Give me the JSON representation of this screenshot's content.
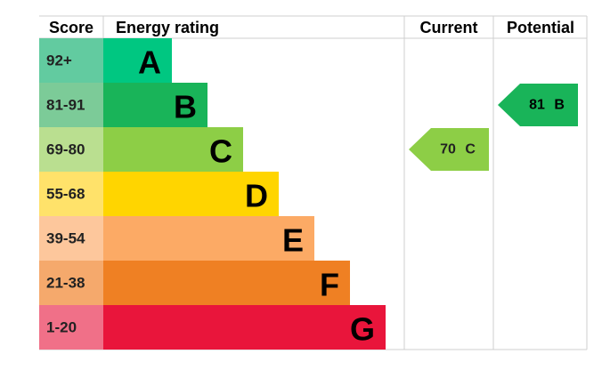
{
  "header": {
    "score": "Score",
    "rating": "Energy rating",
    "current": "Current",
    "potential": "Potential"
  },
  "bands": [
    {
      "score": "92+",
      "letter": "A",
      "color": "#00c781",
      "score_color": "#62cba0"
    },
    {
      "score": "81-91",
      "letter": "B",
      "color": "#19b459",
      "score_color": "#7ccb98"
    },
    {
      "score": "69-80",
      "letter": "C",
      "color": "#8dce46",
      "score_color": "#badf90"
    },
    {
      "score": "55-68",
      "letter": "D",
      "color": "#ffd500",
      "score_color": "#ffe26a"
    },
    {
      "score": "39-54",
      "letter": "E",
      "color": "#fcaa65",
      "score_color": "#fdc79c"
    },
    {
      "score": "21-38",
      "letter": "F",
      "color": "#ef8023",
      "score_color": "#f5a96c"
    },
    {
      "score": "1-20",
      "letter": "G",
      "color": "#e9153b",
      "score_color": "#f07088"
    }
  ],
  "current": {
    "label": "70 C",
    "band": 2
  },
  "potential": {
    "label": "81 B",
    "band": 1
  }
}
